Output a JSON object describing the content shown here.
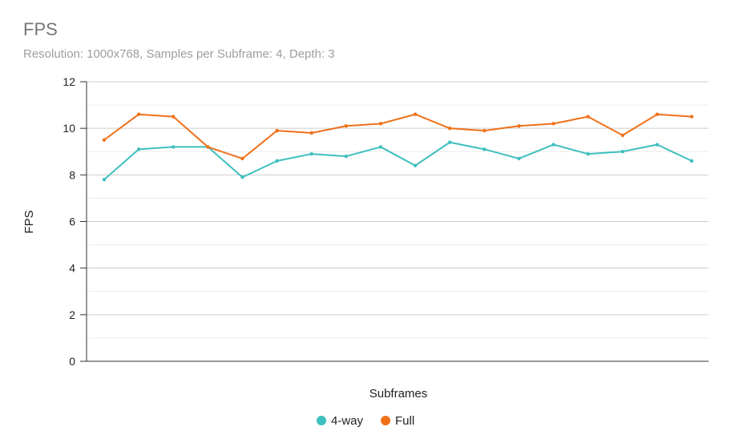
{
  "chart_data": {
    "type": "line",
    "title": "FPS",
    "subtitle": "Resolution: 1000x768, Samples per Subframe: 4, Depth: 3",
    "xlabel": "Subframes",
    "ylabel": "FPS",
    "ylim": [
      0,
      12
    ],
    "yticks": [
      0,
      2,
      4,
      6,
      8,
      10,
      12
    ],
    "grid": true,
    "legend_position": "bottom",
    "x": [
      1,
      2,
      3,
      4,
      5,
      6,
      7,
      8,
      9,
      10,
      11,
      12,
      13,
      14,
      15,
      16,
      17,
      18
    ],
    "series": [
      {
        "name": "4-way",
        "color": "#3fbfbf",
        "values": [
          7.8,
          9.1,
          9.2,
          9.2,
          7.9,
          8.6,
          8.9,
          8.8,
          9.2,
          8.4,
          9.4,
          9.1,
          8.7,
          9.3,
          8.9,
          9.0,
          9.3,
          8.6
        ]
      },
      {
        "name": "Full",
        "color": "#f0711a",
        "values": [
          9.5,
          10.6,
          10.5,
          9.2,
          8.7,
          9.9,
          9.8,
          10.1,
          10.2,
          10.6,
          10.0,
          9.9,
          10.1,
          10.2,
          10.5,
          9.7,
          10.6,
          10.5
        ]
      }
    ]
  }
}
